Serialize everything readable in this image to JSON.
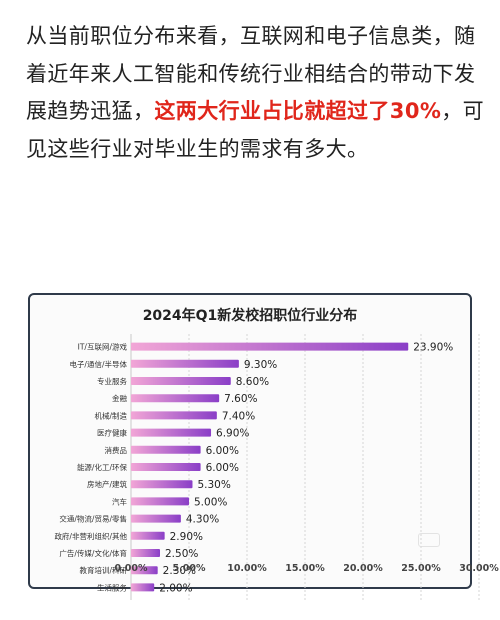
{
  "article": {
    "text_before": "从当前职位分布来看，互联网和电子信息类，随着近年来人工智能和传统行业相结合的带动下发展趋势迅猛，",
    "highlight": "这两大行业占比就超过了30%",
    "text_after": "，可见这些行业对毕业生的需求有多大。"
  },
  "colors": {
    "bar_start": "#f2a6d6",
    "bar_end": "#8a3ec7",
    "highlight": "#e0261b",
    "card_border": "#2f3a4a",
    "grid": "#d6d6d6"
  },
  "chart_data": {
    "type": "bar",
    "orientation": "horizontal",
    "title": "2024年Q1新发校招职位行业分布",
    "categories": [
      "IT/互联网/游戏",
      "电子/通信/半导体",
      "专业服务",
      "金融",
      "机械/制造",
      "医疗健康",
      "消费品",
      "能源/化工/环保",
      "房地产/建筑",
      "汽车",
      "交通/物流/贸易/零售",
      "政府/非营利组织/其他",
      "广告/传媒/文化/体育",
      "教育培训/科研",
      "生活服务"
    ],
    "values": [
      23.9,
      9.3,
      8.6,
      7.6,
      7.4,
      6.9,
      6.0,
      6.0,
      5.3,
      5.0,
      4.3,
      2.9,
      2.5,
      2.3,
      2.0
    ],
    "value_labels": [
      "23.90%",
      "9.30%",
      "8.60%",
      "7.60%",
      "7.40%",
      "6.90%",
      "6.00%",
      "6.00%",
      "5.30%",
      "5.00%",
      "4.30%",
      "2.90%",
      "2.50%",
      "2.30%",
      "2.00%"
    ],
    "x_ticks": [
      0,
      5,
      10,
      15,
      20,
      25,
      30
    ],
    "x_tick_labels": [
      "0.00%",
      "5.00%",
      "10.00%",
      "15.00%",
      "20.00%",
      "25.00%",
      "30.00%"
    ],
    "xlim": [
      0,
      30
    ],
    "grid": true,
    "legend": "none"
  }
}
